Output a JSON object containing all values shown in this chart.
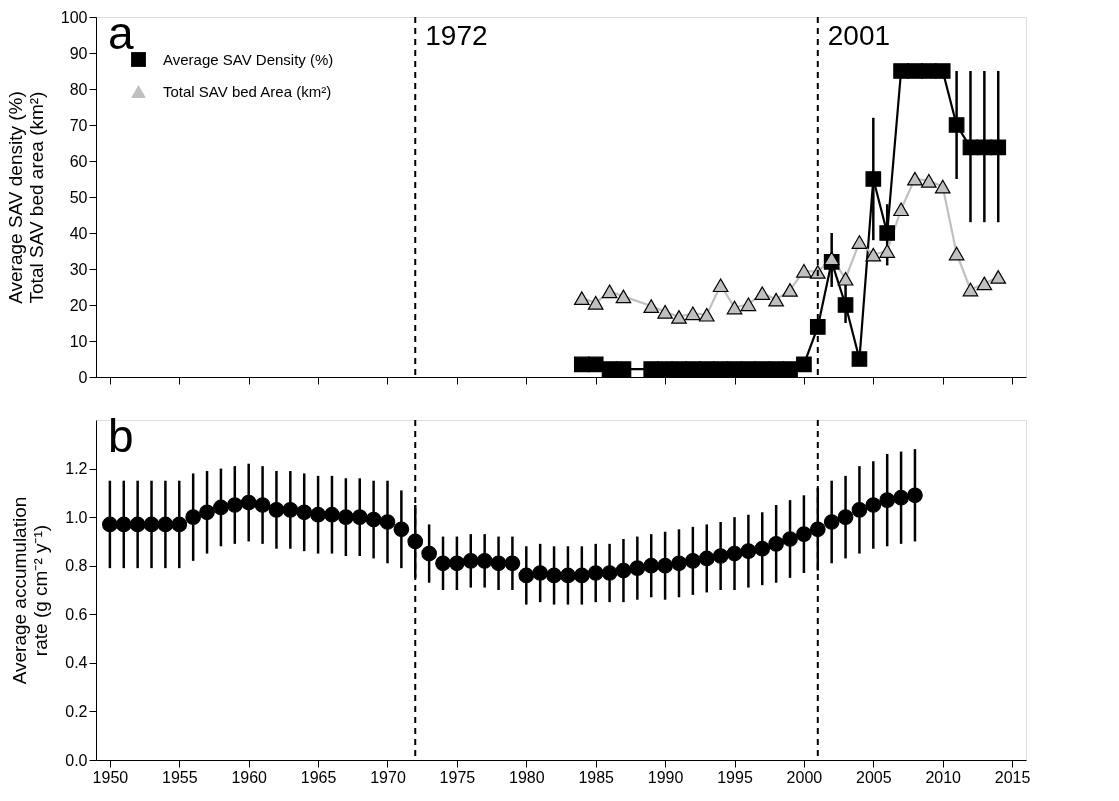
{
  "chart_data": [
    {
      "type": "line",
      "ylabel": "Average SAV density (%)\nTotal SAV bed area (km²)",
      "annotations": [
        "a"
      ],
      "legend": "top left",
      "grid": false,
      "tick_labels": "y",
      "xlim": [
        1949,
        2016
      ],
      "xticks": [
        1950,
        1955,
        1960,
        1965,
        1970,
        1975,
        1980,
        1985,
        1990,
        1995,
        2000,
        2005,
        2010,
        2015
      ],
      "ylim": [
        0,
        100
      ],
      "yticks": [
        0,
        10,
        20,
        30,
        40,
        50,
        60,
        70,
        80,
        90,
        100
      ],
      "ref_lines": [
        {
          "axis": "x",
          "value": 1972,
          "label": "1972",
          "line_style": "dashed"
        },
        {
          "axis": "x",
          "value": 2001,
          "label": "2001",
          "line_style": "dashed"
        }
      ],
      "series": [
        {
          "name": "Average SAV Density (%)",
          "color": "#000000",
          "marker": "square",
          "x": [
            1984,
            1985,
            1986,
            1987,
            1989,
            1990,
            1991,
            1992,
            1993,
            1994,
            1995,
            1996,
            1997,
            1998,
            1999,
            2000,
            2001,
            2002,
            2003,
            2004,
            2005,
            2006,
            2007,
            2008,
            2009,
            2010,
            2011,
            2012,
            2013,
            2014
          ],
          "values": [
            3.5,
            3.5,
            2.2,
            2.2,
            2.2,
            2.2,
            2.2,
            2.2,
            2.2,
            2.2,
            2.2,
            2.2,
            2.2,
            2.2,
            2.2,
            3.5,
            13.9,
            32,
            20,
            5,
            55,
            40,
            85,
            85,
            85,
            85,
            70,
            63.8,
            63.8,
            63.8
          ],
          "errors": [
            null,
            null,
            null,
            null,
            null,
            null,
            null,
            null,
            null,
            null,
            null,
            null,
            null,
            null,
            null,
            null,
            null,
            [
              25,
              40
            ],
            [
              15,
              28
            ],
            null,
            [
              38,
              72
            ],
            [
              31,
              48
            ],
            null,
            null,
            null,
            null,
            [
              55,
              85
            ],
            [
              43,
              85
            ],
            [
              43,
              85
            ],
            [
              43,
              85
            ]
          ]
        },
        {
          "name": "Total SAV bed Area (km²)",
          "color": "#c0c0c0",
          "marker": "triangle",
          "x": [
            1984,
            1985,
            1986,
            1987,
            1989,
            1990,
            1991,
            1992,
            1993,
            1994,
            1995,
            1996,
            1997,
            1998,
            1999,
            2000,
            2001,
            2002,
            2003,
            2004,
            2005,
            2006,
            2007,
            2008,
            2009,
            2010,
            2011,
            2012,
            2013,
            2014
          ],
          "values": [
            21.9,
            20.6,
            23.8,
            22.4,
            19.7,
            18.1,
            16.7,
            17.7,
            17.3,
            25.5,
            19.3,
            20.2,
            23.3,
            21.5,
            24.2,
            29.5,
            29.2,
            33,
            27.3,
            37.5,
            34,
            35,
            46.6,
            55.1,
            54.5,
            52.9,
            34.3,
            24.3,
            26,
            27.8
          ]
        }
      ]
    },
    {
      "type": "scatter",
      "ylabel": "Average accumulation\nrate (g cm⁻² y⁻¹)",
      "annotations": [
        "b"
      ],
      "grid": false,
      "marker": "circle",
      "xlim": [
        1949,
        2016
      ],
      "xticks": [
        1950,
        1955,
        1960,
        1965,
        1970,
        1975,
        1980,
        1985,
        1990,
        1995,
        2000,
        2005,
        2010,
        2015
      ],
      "ylim": [
        0,
        1.4
      ],
      "yticks": [
        {
          "value": 0,
          "label": "0.0"
        },
        0.2,
        0.4,
        0.6,
        0.8,
        {
          "value": 1,
          "label": "1.0"
        },
        1.2
      ],
      "ref_lines": [
        {
          "axis": "x",
          "value": 1972,
          "line_style": "dashed"
        },
        {
          "axis": "x",
          "value": 2001,
          "line_style": "dashed"
        }
      ],
      "series": [
        {
          "color": "#000000",
          "x": [
            1950,
            1951,
            1952,
            1953,
            1954,
            1955,
            1956,
            1957,
            1958,
            1959,
            1960,
            1961,
            1962,
            1963,
            1964,
            1965,
            1966,
            1967,
            1968,
            1969,
            1970,
            1971,
            1972,
            1973,
            1974,
            1975,
            1976,
            1977,
            1978,
            1979,
            1980,
            1981,
            1982,
            1983,
            1984,
            1985,
            1986,
            1987,
            1988,
            1989,
            1990,
            1991,
            1992,
            1993,
            1994,
            1995,
            1996,
            1997,
            1998,
            1999,
            2000,
            2001,
            2002,
            2003,
            2004,
            2005,
            2006,
            2007,
            2008
          ],
          "values": [
            0.97,
            0.97,
            0.97,
            0.97,
            0.97,
            0.97,
            1.0,
            1.02,
            1.04,
            1.05,
            1.06,
            1.05,
            1.03,
            1.03,
            1.02,
            1.01,
            1.01,
            1.0,
            1.0,
            0.99,
            0.98,
            0.95,
            0.9,
            0.85,
            0.81,
            0.81,
            0.82,
            0.82,
            0.81,
            0.81,
            0.76,
            0.77,
            0.76,
            0.76,
            0.76,
            0.77,
            0.77,
            0.78,
            0.79,
            0.8,
            0.8,
            0.81,
            0.82,
            0.83,
            0.84,
            0.85,
            0.86,
            0.87,
            0.89,
            0.91,
            0.93,
            0.95,
            0.98,
            1.0,
            1.03,
            1.05,
            1.07,
            1.08,
            1.09
          ],
          "errors": [
            0.18,
            0.18,
            0.18,
            0.18,
            0.18,
            0.18,
            0.18,
            0.17,
            0.16,
            0.16,
            0.16,
            0.16,
            0.16,
            0.16,
            0.16,
            0.16,
            0.16,
            0.16,
            0.16,
            0.16,
            0.17,
            0.16,
            0.15,
            0.12,
            0.11,
            0.11,
            0.11,
            0.11,
            0.11,
            0.11,
            0.12,
            0.12,
            0.12,
            0.12,
            0.12,
            0.12,
            0.12,
            0.13,
            0.13,
            0.13,
            0.14,
            0.14,
            0.14,
            0.14,
            0.14,
            0.15,
            0.15,
            0.15,
            0.16,
            0.16,
            0.16,
            0.17,
            0.17,
            0.17,
            0.18,
            0.18,
            0.19,
            0.19,
            0.19
          ]
        }
      ]
    }
  ]
}
